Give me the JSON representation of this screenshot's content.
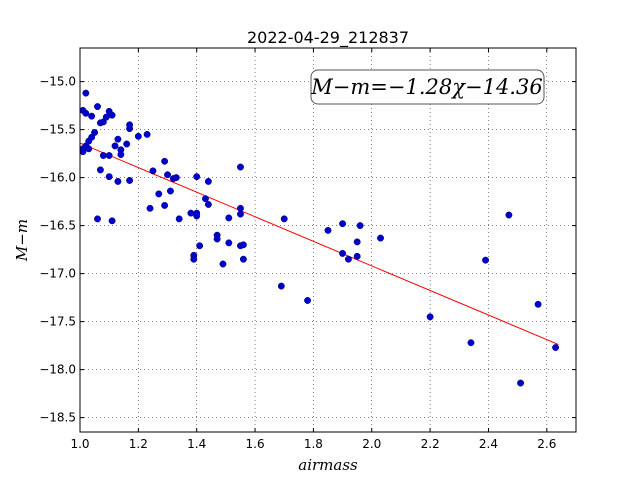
{
  "chart_data": {
    "type": "scatter",
    "title": "2022-04-29_212837",
    "xlabel": "airmass",
    "ylabel": "M−m",
    "xlim": [
      1.0,
      2.7
    ],
    "ylim": [
      -18.65,
      -14.65
    ],
    "x_ticks": [
      1.0,
      1.2,
      1.4,
      1.6,
      1.8,
      2.0,
      2.2,
      2.4,
      2.6
    ],
    "x_tick_labels": [
      "1.0",
      "1.2",
      "1.4",
      "1.6",
      "1.8",
      "2.0",
      "2.2",
      "2.4",
      "2.6"
    ],
    "y_ticks": [
      -15.0,
      -15.5,
      -16.0,
      -16.5,
      -17.0,
      -17.5,
      -18.0,
      -18.5
    ],
    "y_tick_labels": [
      "−15.0",
      "−15.5",
      "−16.0",
      "−16.5",
      "−17.0",
      "−17.5",
      "−18.0",
      "−18.5"
    ],
    "grid": true,
    "annotation": "M−m=−1.28χ−14.36",
    "fit": {
      "slope": -1.28,
      "intercept": -14.36,
      "x_range": [
        1.0,
        2.64
      ],
      "color": "#ff0000"
    },
    "point_color": "#0000cc",
    "points": [
      [
        1.01,
        -15.7
      ],
      [
        1.01,
        -15.73
      ],
      [
        1.01,
        -15.3
      ],
      [
        1.02,
        -15.12
      ],
      [
        1.02,
        -15.33
      ],
      [
        1.02,
        -15.67
      ],
      [
        1.03,
        -15.7
      ],
      [
        1.03,
        -15.62
      ],
      [
        1.04,
        -15.58
      ],
      [
        1.04,
        -15.36
      ],
      [
        1.05,
        -15.53
      ],
      [
        1.06,
        -15.26
      ],
      [
        1.06,
        -16.43
      ],
      [
        1.07,
        -15.43
      ],
      [
        1.07,
        -15.92
      ],
      [
        1.08,
        -15.77
      ],
      [
        1.08,
        -15.42
      ],
      [
        1.09,
        -15.37
      ],
      [
        1.1,
        -15.31
      ],
      [
        1.1,
        -15.99
      ],
      [
        1.1,
        -15.77
      ],
      [
        1.11,
        -15.35
      ],
      [
        1.11,
        -16.45
      ],
      [
        1.12,
        -15.67
      ],
      [
        1.13,
        -15.6
      ],
      [
        1.13,
        -16.04
      ],
      [
        1.14,
        -15.71
      ],
      [
        1.14,
        -15.76
      ],
      [
        1.16,
        -15.65
      ],
      [
        1.17,
        -15.49
      ],
      [
        1.17,
        -15.45
      ],
      [
        1.17,
        -16.03
      ],
      [
        1.2,
        -15.57
      ],
      [
        1.23,
        -15.55
      ],
      [
        1.24,
        -16.32
      ],
      [
        1.25,
        -15.93
      ],
      [
        1.27,
        -16.17
      ],
      [
        1.29,
        -16.29
      ],
      [
        1.29,
        -15.83
      ],
      [
        1.3,
        -15.97
      ],
      [
        1.31,
        -16.14
      ],
      [
        1.32,
        -16.01
      ],
      [
        1.33,
        -16.0
      ],
      [
        1.34,
        -16.43
      ],
      [
        1.38,
        -16.37
      ],
      [
        1.39,
        -16.81
      ],
      [
        1.39,
        -16.85
      ],
      [
        1.4,
        -16.4
      ],
      [
        1.4,
        -16.37
      ],
      [
        1.4,
        -15.99
      ],
      [
        1.41,
        -16.71
      ],
      [
        1.43,
        -16.22
      ],
      [
        1.44,
        -16.04
      ],
      [
        1.44,
        -16.28
      ],
      [
        1.47,
        -16.6
      ],
      [
        1.47,
        -16.64
      ],
      [
        1.49,
        -16.9
      ],
      [
        1.51,
        -16.42
      ],
      [
        1.51,
        -16.68
      ],
      [
        1.55,
        -15.89
      ],
      [
        1.55,
        -16.32
      ],
      [
        1.55,
        -16.38
      ],
      [
        1.55,
        -16.71
      ],
      [
        1.56,
        -16.7
      ],
      [
        1.56,
        -16.85
      ],
      [
        1.69,
        -17.13
      ],
      [
        1.7,
        -16.43
      ],
      [
        1.78,
        -17.28
      ],
      [
        1.85,
        -16.55
      ],
      [
        1.9,
        -16.48
      ],
      [
        1.9,
        -16.79
      ],
      [
        1.92,
        -16.85
      ],
      [
        1.95,
        -16.67
      ],
      [
        1.95,
        -16.82
      ],
      [
        1.96,
        -16.5
      ],
      [
        2.03,
        -16.63
      ],
      [
        2.2,
        -17.45
      ],
      [
        2.34,
        -17.72
      ],
      [
        2.39,
        -16.86
      ],
      [
        2.47,
        -16.39
      ],
      [
        2.51,
        -18.14
      ],
      [
        2.57,
        -17.32
      ],
      [
        2.63,
        -17.77
      ]
    ]
  }
}
